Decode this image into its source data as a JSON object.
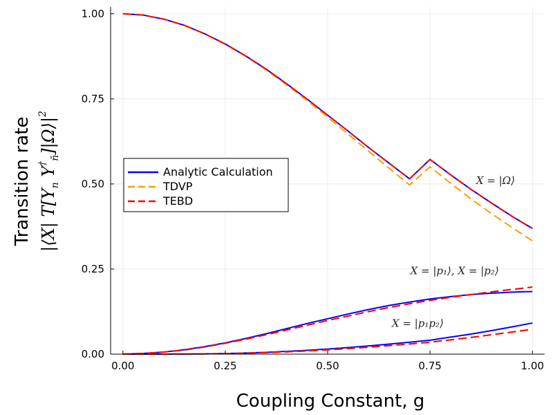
{
  "chart_data": {
    "type": "line",
    "xlabel": "Coupling Constant, g",
    "ylabel": "Transition rate",
    "ylabel_formula": "|⟨X| T[Y",
    "ylabel_formula_sub1": "n",
    "ylabel_formula_mid": " Y",
    "ylabel_formula_sup": "†",
    "ylabel_formula_sub2": "n̄",
    "ylabel_formula_end": "]|Ω⟩|",
    "ylabel_formula_pow": "2",
    "xlim": [
      -0.03,
      1.03
    ],
    "ylim": [
      0.0,
      1.02
    ],
    "xticks": [
      0.0,
      0.25,
      0.5,
      0.75,
      1.0
    ],
    "xtick_labels": [
      "0.00",
      "0.25",
      "0.50",
      "0.75",
      "1.00"
    ],
    "yticks": [
      0.0,
      0.25,
      0.5,
      0.75,
      1.0
    ],
    "ytick_labels": [
      "0.00",
      "0.25",
      "0.50",
      "0.75",
      "1.00"
    ],
    "grid": true,
    "legend_position": "center-left",
    "x": [
      0.0,
      0.05,
      0.1,
      0.15,
      0.2,
      0.25,
      0.3,
      0.35,
      0.4,
      0.45,
      0.5,
      0.55,
      0.6,
      0.65,
      0.7,
      0.75,
      0.8,
      0.85,
      0.9,
      0.95,
      1.0
    ],
    "groups": [
      {
        "annotation": "X = |Ω⟩",
        "series": [
          {
            "name": "Analytic Calculation",
            "color": "#0000ff",
            "dash": "solid",
            "values": [
              1.0,
              0.996,
              0.984,
              0.966,
              0.941,
              0.911,
              0.876,
              0.837,
              0.794,
              0.749,
              0.702,
              0.655,
              0.607,
              0.561,
              0.515,
              0.572,
              0.527,
              0.484,
              0.444,
              0.405,
              0.369
            ]
          },
          {
            "name": "TDVP",
            "color": "#f5a000",
            "dash": "dashed",
            "values": [
              1.0,
              0.996,
              0.984,
              0.966,
              0.941,
              0.91,
              0.875,
              0.835,
              0.791,
              0.745,
              0.696,
              0.646,
              0.596,
              0.546,
              0.497,
              0.55,
              0.502,
              0.456,
              0.413,
              0.372,
              0.333
            ]
          },
          {
            "name": "TEBD",
            "color": "#ff0000",
            "dash": "dashed",
            "values": [
              1.0,
              0.996,
              0.984,
              0.966,
              0.941,
              0.911,
              0.876,
              0.837,
              0.794,
              0.749,
              0.702,
              0.655,
              0.607,
              0.561,
              0.515,
              0.572,
              0.527,
              0.484,
              0.444,
              0.405,
              0.369
            ]
          }
        ]
      },
      {
        "annotation": "X = |p₁⟩, X = |p₂⟩",
        "series": [
          {
            "name": "Analytic Calculation",
            "color": "#0000ff",
            "dash": "solid",
            "values": [
              0.0,
              0.002,
              0.006,
              0.013,
              0.022,
              0.033,
              0.046,
              0.06,
              0.075,
              0.09,
              0.104,
              0.118,
              0.131,
              0.143,
              0.153,
              0.162,
              0.169,
              0.175,
              0.179,
              0.182,
              0.184
            ]
          },
          {
            "name": "TDVP",
            "color": "#f5a000",
            "dash": "dashed",
            "values": [
              0.0,
              0.002,
              0.006,
              0.012,
              0.021,
              0.032,
              0.044,
              0.057,
              0.071,
              0.085,
              0.099,
              0.112,
              0.125,
              0.137,
              0.148,
              0.158,
              0.167,
              0.175,
              0.183,
              0.19,
              0.197
            ]
          },
          {
            "name": "TEBD",
            "color": "#ff0000",
            "dash": "dashed",
            "values": [
              0.0,
              0.002,
              0.006,
              0.012,
              0.021,
              0.032,
              0.044,
              0.057,
              0.071,
              0.085,
              0.099,
              0.112,
              0.125,
              0.137,
              0.148,
              0.158,
              0.167,
              0.175,
              0.183,
              0.19,
              0.197
            ]
          }
        ]
      },
      {
        "annotation": "X = |p₁p₂⟩",
        "series": [
          {
            "name": "Analytic Calculation",
            "color": "#0000ff",
            "dash": "solid",
            "values": [
              0.0,
              0.0,
              0.0,
              0.0003,
              0.0008,
              0.0018,
              0.0033,
              0.0054,
              0.0081,
              0.0113,
              0.0151,
              0.0194,
              0.0242,
              0.0294,
              0.035,
              0.0409,
              0.05,
              0.059,
              0.069,
              0.08,
              0.0915
            ]
          },
          {
            "name": "TDVP",
            "color": "#f5a000",
            "dash": "dashed",
            "values": [
              0.0,
              0.0,
              0.0,
              0.0003,
              0.0007,
              0.0015,
              0.0028,
              0.0045,
              0.0067,
              0.0094,
              0.0126,
              0.0163,
              0.0204,
              0.0249,
              0.0298,
              0.035,
              0.042,
              0.049,
              0.057,
              0.065,
              0.073
            ]
          },
          {
            "name": "TEBD",
            "color": "#ff0000",
            "dash": "dashed",
            "values": [
              0.0,
              0.0,
              0.0,
              0.0003,
              0.0007,
              0.0015,
              0.0028,
              0.0045,
              0.0067,
              0.0094,
              0.0126,
              0.0163,
              0.0204,
              0.0249,
              0.0298,
              0.035,
              0.042,
              0.049,
              0.057,
              0.065,
              0.073
            ]
          }
        ]
      }
    ],
    "legend": [
      {
        "label": "Analytic Calculation",
        "color": "#0000ff",
        "dash": "solid"
      },
      {
        "label": "TDVP",
        "color": "#f5a000",
        "dash": "dashed"
      },
      {
        "label": "TEBD",
        "color": "#ff0000",
        "dash": "dashed"
      }
    ]
  }
}
